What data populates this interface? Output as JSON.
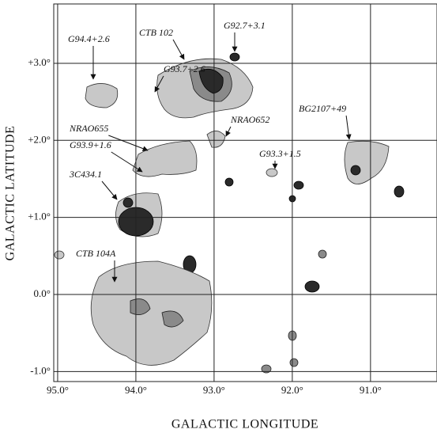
{
  "chart_data": {
    "type": "map",
    "xlabel": "GALACTIC LONGITUDE",
    "ylabel": "GALACTIC LATITUDE",
    "xlim": [
      95.05,
      90.15
    ],
    "ylim": [
      -1.13,
      3.77
    ],
    "xticks": [
      {
        "value": 95,
        "label": "95.0°"
      },
      {
        "value": 94,
        "label": "94.0°"
      },
      {
        "value": 93,
        "label": "93.0°"
      },
      {
        "value": 92,
        "label": "92.0°"
      },
      {
        "value": 91,
        "label": "91.0°"
      }
    ],
    "yticks": [
      {
        "value": 3,
        "label": "+3.0°"
      },
      {
        "value": 2,
        "label": "+2.0°"
      },
      {
        "value": 1,
        "label": "+1.0°"
      },
      {
        "value": 0,
        "label": "0.0°"
      },
      {
        "value": -1,
        "label": "-1.0°"
      }
    ],
    "grid": true,
    "annotations": [
      "G94.4+2.6",
      "CTB 102",
      "G92.7+3.1",
      "G93.7+2.6",
      "NRAO655",
      "NRAO652",
      "BG2107+49",
      "G93.9+1.6",
      "G93.3+1.5",
      "3C434.1",
      "CTB 104A"
    ]
  }
}
